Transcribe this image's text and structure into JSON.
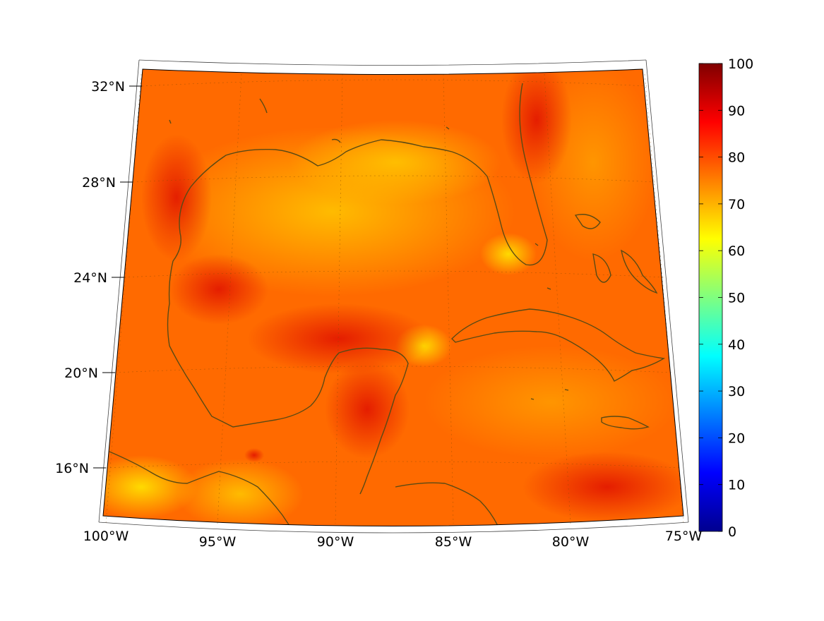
{
  "map": {
    "projection": "conic",
    "longitude_range": [
      -100,
      -75
    ],
    "latitude_range": [
      14,
      33
    ],
    "field_description": "colored field over Gulf of Mexico and Caribbean",
    "ocean_colors": [
      "#ff5a00",
      "#ff8a00",
      "#ffb400",
      "#e21800"
    ],
    "coastline_color": "#5a4a14"
  },
  "axes": {
    "lon_ticks": [
      {
        "value": -100,
        "label": "100°W"
      },
      {
        "value": -95,
        "label": "95°W"
      },
      {
        "value": -90,
        "label": "90°W"
      },
      {
        "value": -85,
        "label": "85°W"
      },
      {
        "value": -80,
        "label": "80°W"
      },
      {
        "value": -75,
        "label": "75°W"
      }
    ],
    "lat_ticks": [
      {
        "value": 32,
        "label": "32°N"
      },
      {
        "value": 28,
        "label": "28°N"
      },
      {
        "value": 24,
        "label": "24°N"
      },
      {
        "value": 20,
        "label": "20°N"
      },
      {
        "value": 16,
        "label": "16°N"
      }
    ],
    "grid": "dotted"
  },
  "colorbar": {
    "colormap": "jet",
    "range": [
      0,
      100
    ],
    "ticks": [
      "0",
      "10",
      "20",
      "30",
      "40",
      "50",
      "60",
      "70",
      "80",
      "90",
      "100"
    ]
  }
}
